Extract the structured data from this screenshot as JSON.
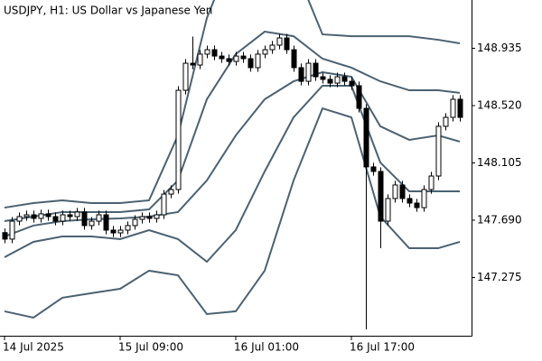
{
  "chart_data": {
    "type": "candlestick",
    "title": "USDJPY, H1:  US Dollar vs Japanese Yen",
    "categories": [
      "14 Jul 2025",
      null,
      null,
      null,
      null,
      null,
      null,
      null,
      null,
      null,
      null,
      null,
      null,
      null,
      null,
      null,
      "15 Jul 09:00",
      null,
      null,
      null,
      null,
      null,
      null,
      null,
      null,
      null,
      null,
      null,
      null,
      null,
      null,
      null,
      "16 Jul 01:00",
      null,
      null,
      null,
      null,
      null,
      null,
      null,
      null,
      null,
      null,
      null,
      null,
      null,
      null,
      null,
      "16 Jul 17:00",
      null,
      null,
      null,
      null,
      null,
      null,
      null,
      null,
      null,
      null,
      null,
      null,
      null,
      null,
      null
    ],
    "open": [
      147.6,
      147.553,
      147.683,
      147.716,
      147.729,
      147.703,
      147.736,
      147.716,
      147.683,
      147.729,
      147.716,
      147.749,
      147.651,
      147.683,
      147.729,
      147.618,
      147.598,
      147.618,
      147.651,
      147.696,
      147.716,
      147.703,
      147.729,
      147.879,
      147.912,
      148.631,
      148.827,
      148.814,
      148.893,
      148.925,
      148.879,
      148.86,
      148.84,
      148.879,
      148.86,
      148.795,
      148.893,
      148.925,
      148.958,
      149.01,
      148.925,
      148.795,
      148.696,
      148.827,
      148.729,
      148.71,
      148.683,
      148.729,
      148.696,
      148.664,
      148.5,
      148.076,
      148.043,
      147.683,
      147.847,
      147.945,
      147.847,
      147.814,
      147.781,
      147.912,
      148.01,
      148.37,
      148.435,
      148.566
    ],
    "high": [
      147.63,
      147.713,
      147.746,
      147.759,
      147.759,
      147.766,
      147.766,
      147.746,
      147.759,
      147.759,
      147.779,
      147.779,
      147.713,
      147.759,
      147.759,
      147.648,
      147.648,
      147.681,
      147.726,
      147.746,
      147.746,
      147.759,
      147.909,
      147.942,
      148.661,
      148.857,
      149.02,
      148.923,
      148.955,
      148.955,
      148.909,
      148.89,
      148.909,
      148.909,
      148.89,
      148.923,
      148.955,
      148.988,
      149.04,
      149.04,
      148.955,
      148.825,
      148.857,
      148.857,
      148.759,
      148.74,
      148.759,
      148.759,
      148.726,
      148.694,
      148.53,
      148.106,
      148.073,
      147.877,
      147.975,
      147.975,
      147.877,
      147.844,
      147.942,
      148.04,
      148.4,
      148.465,
      148.596,
      148.596
    ],
    "low": [
      147.523,
      147.523,
      147.653,
      147.686,
      147.673,
      147.673,
      147.686,
      147.653,
      147.653,
      147.686,
      147.686,
      147.621,
      147.621,
      147.653,
      147.588,
      147.568,
      147.568,
      147.588,
      147.621,
      147.666,
      147.673,
      147.673,
      147.699,
      147.849,
      147.882,
      148.601,
      148.784,
      148.784,
      148.863,
      148.849,
      148.83,
      148.81,
      148.81,
      148.83,
      148.765,
      148.765,
      148.863,
      148.895,
      148.928,
      148.895,
      148.765,
      148.666,
      148.666,
      148.699,
      148.68,
      148.653,
      148.653,
      148.666,
      148.634,
      148.47,
      146.899,
      148.013,
      147.487,
      147.653,
      147.817,
      147.817,
      147.784,
      147.751,
      147.751,
      147.882,
      147.98,
      148.34,
      148.405,
      148.405
    ],
    "close": [
      147.553,
      147.683,
      147.716,
      147.729,
      147.703,
      147.736,
      147.716,
      147.683,
      147.729,
      147.716,
      147.749,
      147.651,
      147.683,
      147.729,
      147.618,
      147.598,
      147.618,
      147.651,
      147.696,
      147.716,
      147.703,
      147.729,
      147.879,
      147.912,
      148.631,
      148.827,
      148.814,
      148.893,
      148.925,
      148.879,
      148.86,
      148.84,
      148.879,
      148.86,
      148.795,
      148.893,
      148.925,
      148.958,
      149.01,
      148.925,
      148.795,
      148.696,
      148.827,
      148.729,
      148.71,
      148.683,
      148.729,
      148.696,
      148.664,
      148.5,
      148.076,
      148.043,
      147.683,
      147.847,
      147.945,
      147.847,
      147.814,
      147.781,
      147.912,
      148.01,
      148.37,
      148.435,
      148.566,
      148.435
    ],
    "up_color": "#ffffff",
    "down_color": "#000000",
    "candle_outline": "#000000",
    "bands": [
      {
        "color": "#4b6272",
        "x": [
          0,
          4,
          8,
          12,
          16,
          20,
          24,
          28,
          32,
          36,
          40,
          44,
          48,
          52,
          56,
          60,
          63
        ],
        "values": [
          147.781,
          147.814,
          147.834,
          147.814,
          147.814,
          147.834,
          148.304,
          149.154,
          149.677,
          149.873,
          149.546,
          149.036,
          149.023,
          149.023,
          149.023,
          148.997,
          148.971
        ]
      },
      {
        "color": "#4b6272",
        "x": [
          0,
          4,
          8,
          12,
          16,
          20,
          24,
          28,
          32,
          36,
          40,
          44,
          48,
          52,
          56,
          60,
          63
        ],
        "values": [
          147.683,
          147.716,
          147.749,
          147.749,
          147.749,
          147.768,
          147.978,
          148.566,
          148.893,
          149.056,
          149.023,
          148.86,
          148.795,
          148.696,
          148.631,
          148.631,
          148.612
        ]
      },
      {
        "color": "#4b6272",
        "x": [
          0,
          4,
          8,
          12,
          16,
          20,
          24,
          28,
          32,
          36,
          40,
          44,
          48,
          52,
          56,
          60,
          63
        ],
        "values": [
          147.572,
          147.651,
          147.683,
          147.696,
          147.703,
          147.716,
          147.749,
          147.978,
          148.304,
          148.566,
          148.696,
          148.762,
          148.729,
          148.37,
          148.272,
          148.304,
          148.259
        ]
      },
      {
        "color": "#4b6272",
        "x": [
          0,
          4,
          8,
          12,
          16,
          20,
          24,
          28,
          32,
          36,
          40,
          44,
          48,
          52,
          56,
          60,
          63
        ],
        "values": [
          147.422,
          147.533,
          147.572,
          147.572,
          147.553,
          147.618,
          147.553,
          147.389,
          147.618,
          148.043,
          148.435,
          148.664,
          148.664,
          148.108,
          147.899,
          147.899,
          147.899
        ]
      },
      {
        "color": "#4b6272",
        "x": [
          0,
          4,
          8,
          12,
          16,
          20,
          24,
          28,
          32,
          36,
          40,
          44,
          48,
          52,
          56,
          60,
          63
        ],
        "values": [
          147.03,
          146.984,
          147.128,
          147.161,
          147.193,
          147.324,
          147.291,
          147.01,
          147.03,
          147.324,
          147.978,
          148.5,
          148.435,
          147.716,
          147.487,
          147.487,
          147.533
        ]
      }
    ],
    "ylim": [
      146.853,
      149.285
    ],
    "yticks": [
      148.935,
      {
        "value": 148.52,
        "label": "148.520"
      },
      148.105,
      {
        "value": 147.69,
        "label": "147.690"
      },
      147.275
    ],
    "axis_side": "right",
    "grid": false
  }
}
